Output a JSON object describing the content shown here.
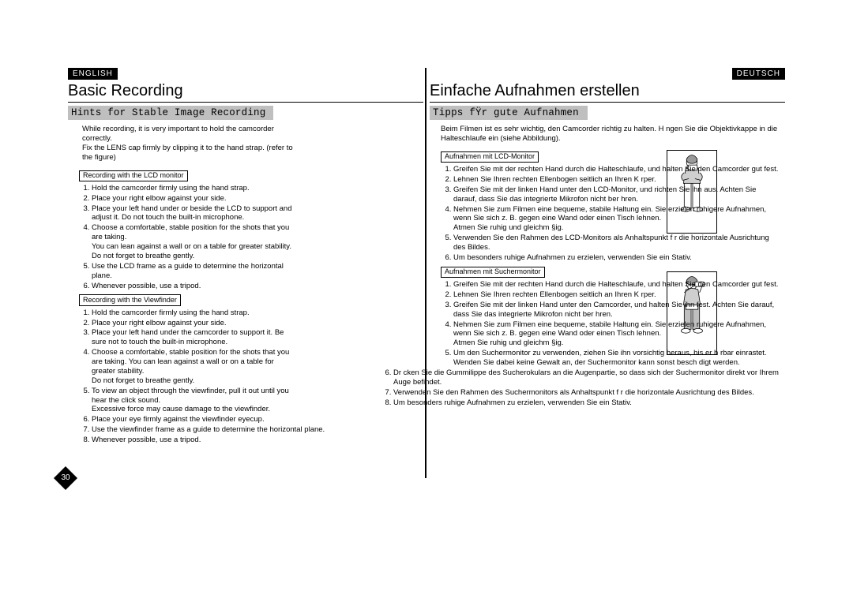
{
  "page_number": "30",
  "left": {
    "lang": "ENGLISH",
    "title": "Basic Recording",
    "subtitle": "Hints for Stable Image Recording",
    "intro": [
      "While recording, it is very important to hold the camcorder correctly.",
      "Fix the LENS cap firmly by clipping it to the hand strap. (refer to the figure)"
    ],
    "section1_head": "Recording with the LCD monitor",
    "section1_items": [
      "Hold the camcorder firmly using the hand strap.",
      "Place your right elbow against your side.",
      "Place your left hand under or beside the LCD to support and adjust it. Do not touch the built-in microphone.",
      "Choose a comfortable, stable position for the shots that you are taking.\nYou can lean against a wall or on a table for greater stability. Do not forget to breathe gently.",
      "Use the LCD frame as a guide to determine the horizontal plane.",
      "Whenever possible, use a tripod."
    ],
    "section2_head": "Recording with the Viewfinder",
    "section2_items": [
      "Hold the camcorder firmly using the hand strap.",
      "Place your right elbow against your side.",
      "Place your left hand under the camcorder to support it. Be sure not to touch the built-in microphone.",
      "Choose a comfortable, stable position for the shots  that you are taking. You can lean against a wall or on a table for greater stability.\nDo not forget to breathe gently.",
      "To view an object through the viewfinder, pull it out until you hear the  click  sound.\nExcessive force may cause damage to the viewfinder.",
      "Place your eye firmly against the viewfinder eyecup.",
      "Use the viewfinder frame as a guide to determine the horizontal plane.",
      "Whenever possible, use a tripod."
    ]
  },
  "right": {
    "lang": "DEUTSCH",
    "title": "Einfache Aufnahmen erstellen",
    "subtitle": "Tipps fŸr gute Aufnahmen",
    "intro": [
      "Beim Filmen ist es sehr wichtig, den Camcorder richtig zu halten. H ngen Sie die Objektivkappe in die Halteschlaufe ein (siehe Abbildung)."
    ],
    "section1_head": "Aufnahmen mit LCD-Monitor",
    "section1_items": [
      "Greifen Sie mit der rechten Hand durch die Halteschlaufe, und halten Sie den Camcorder gut fest.",
      "Lehnen Sie Ihren rechten Ellenbogen seitlich an Ihren K rper.",
      "Greifen Sie mit der linken Hand unter den LCD-Monitor, und richten Sie ihn aus. Achten Sie darauf, dass Sie das integrierte Mikrofon nicht ber hren.",
      "Nehmen Sie zum Filmen eine bequeme, stabile Haltung ein. Sie erzielen ruhigere Aufnahmen, wenn Sie sich z. B. gegen eine Wand oder einen Tisch lehnen.\nAtmen Sie ruhig und gleichm §ig.",
      "Verwenden Sie den Rahmen des LCD-Monitors als Anhaltspunkt f r die horizontale Ausrichtung des Bildes.",
      "Um besonders ruhige Aufnahmen zu erzielen, verwenden Sie ein Stativ."
    ],
    "section2_head": "Aufnahmen mit Suchermonitor",
    "section2_items_a": [
      "Greifen Sie mit der rechten Hand durch die Halteschlaufe, und halten Sie den Camcorder gut fest.",
      "Lehnen Sie Ihren rechten Ellenbogen seitlich an Ihren K rper.",
      "Greifen Sie mit der linken Hand unter den Camcorder, und halten Sie ihn fest. Achten Sie darauf, dass Sie das integrierte Mikrofon nicht ber hren.",
      "Nehmen Sie zum Filmen eine bequeme, stabile Haltung ein. Sie erzielen ruhigere Aufnahmen, wenn Sie sich z. B. gegen eine Wand oder einen Tisch lehnen.\nAtmen Sie ruhig und gleichm §ig.",
      "Um den Suchermonitor zu verwenden, ziehen Sie ihn vorsichtig heraus, bis er h rbar einrastet.\nWenden Sie dabei keine Gewalt an, der Suchermonitor kann sonst besch digt werden."
    ],
    "section2_items_b": [
      "Dr cken Sie die Gummilippe des Sucherokulars an die Augenpartie, so dass sich der Suchermonitor direkt vor Ihrem Auge befindet.",
      "Verwenden Sie den Rahmen des Suchermonitors als Anhaltspunkt f r die horizontale Ausrichtung des Bildes.",
      "Um besonders ruhige Aufnahmen zu erzielen, verwenden Sie ein Stativ."
    ]
  },
  "colors": {
    "badge_bg": "#000000",
    "badge_fg": "#ffffff",
    "bar_bg": "#bfbfbf",
    "text": "#000000",
    "rule": "#000000",
    "page_bg": "#ffffff"
  },
  "figure": {
    "stroke": "#000000",
    "fill_hair": "#9a9a9a",
    "fill_shirt": "#cfcfcf",
    "fill_pants": "#bfbfbf"
  }
}
